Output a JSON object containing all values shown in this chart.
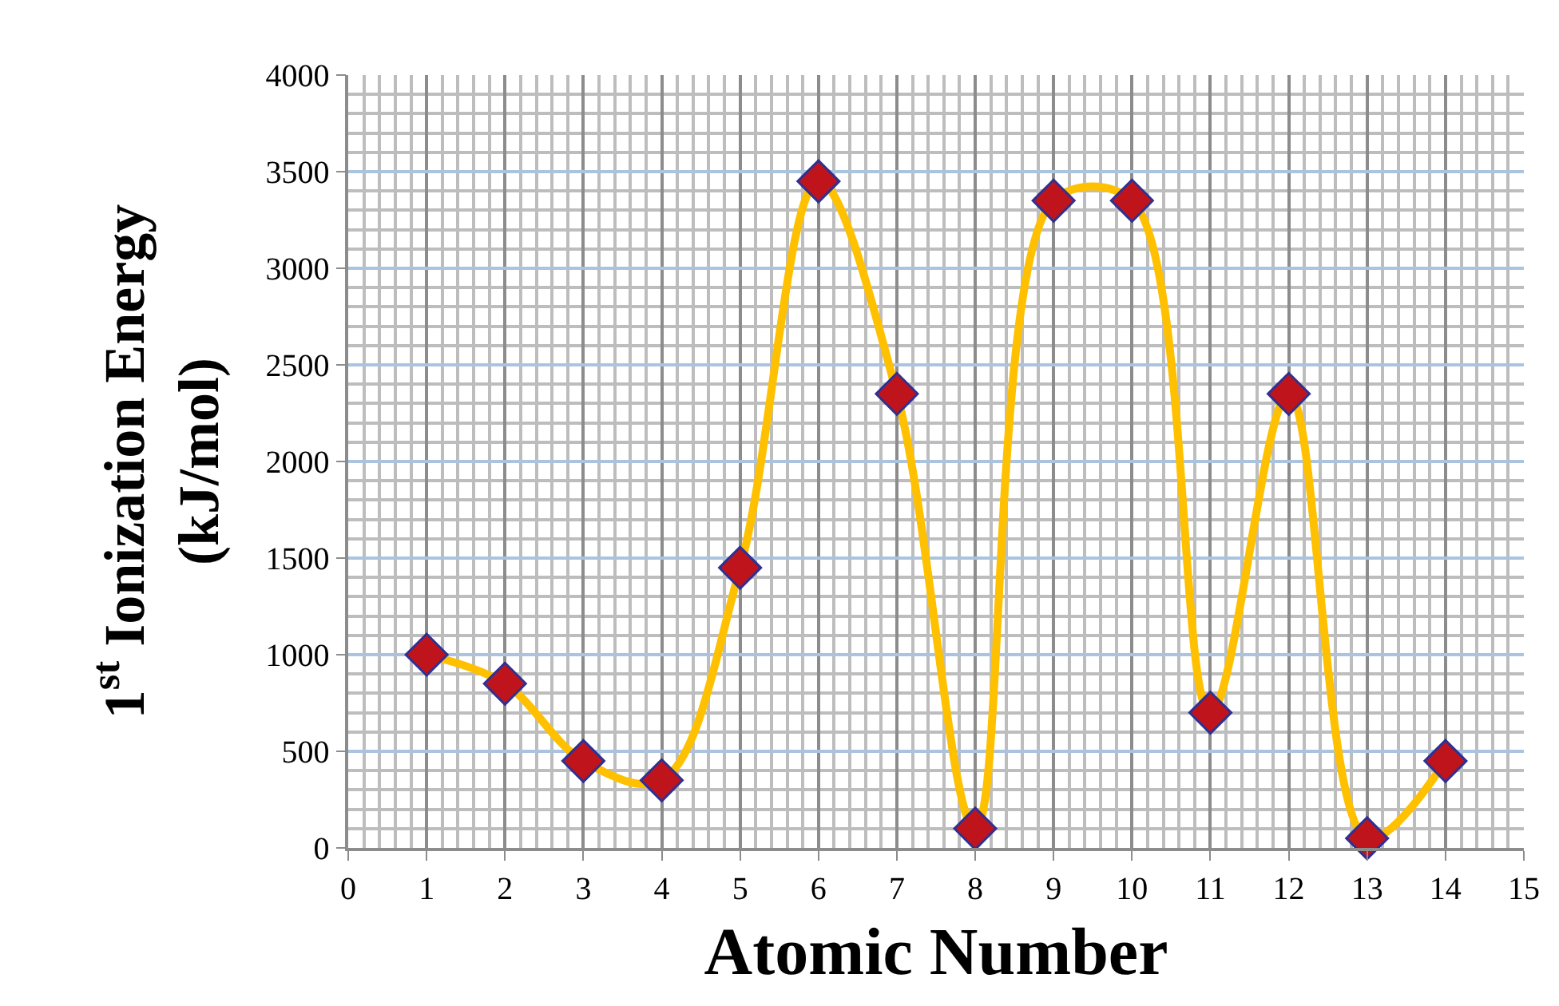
{
  "chart_data": {
    "type": "line",
    "xlabel": "Atomic Number",
    "ylabel": "1$^{st}$ Ionization Energy\n(kJ/mol)",
    "x": [
      1,
      2,
      3,
      4,
      5,
      6,
      7,
      8,
      9,
      10,
      11,
      12,
      13,
      14
    ],
    "series": [
      {
        "color": "#ffc000",
        "colors": [
          "#c0141c",
          "#c0141c",
          "#c0141c",
          "#c0141c",
          "#c0141c",
          "#c0141c",
          "#c0141c",
          "#c0141c",
          "#c0141c",
          "#c0141c",
          "#c0141c",
          "#c0141c",
          "#c0141c",
          "#c0141c"
        ],
        "values": [
          1000,
          850,
          450,
          350,
          1450,
          3450,
          2350,
          100,
          3350,
          3350,
          700,
          2350,
          50,
          450
        ]
      }
    ],
    "xlim": [
      0,
      15
    ],
    "xticks": [
      0,
      1,
      2,
      3,
      4,
      5,
      6,
      7,
      8,
      9,
      10,
      11,
      12,
      13,
      14,
      15
    ],
    "ylim": [
      0,
      4000
    ],
    "yticks": [
      0,
      500,
      1000,
      1500,
      2000,
      2500,
      3000,
      3500,
      4000
    ],
    "grid": true,
    "marker": "diamond",
    "line_style": "solid"
  }
}
